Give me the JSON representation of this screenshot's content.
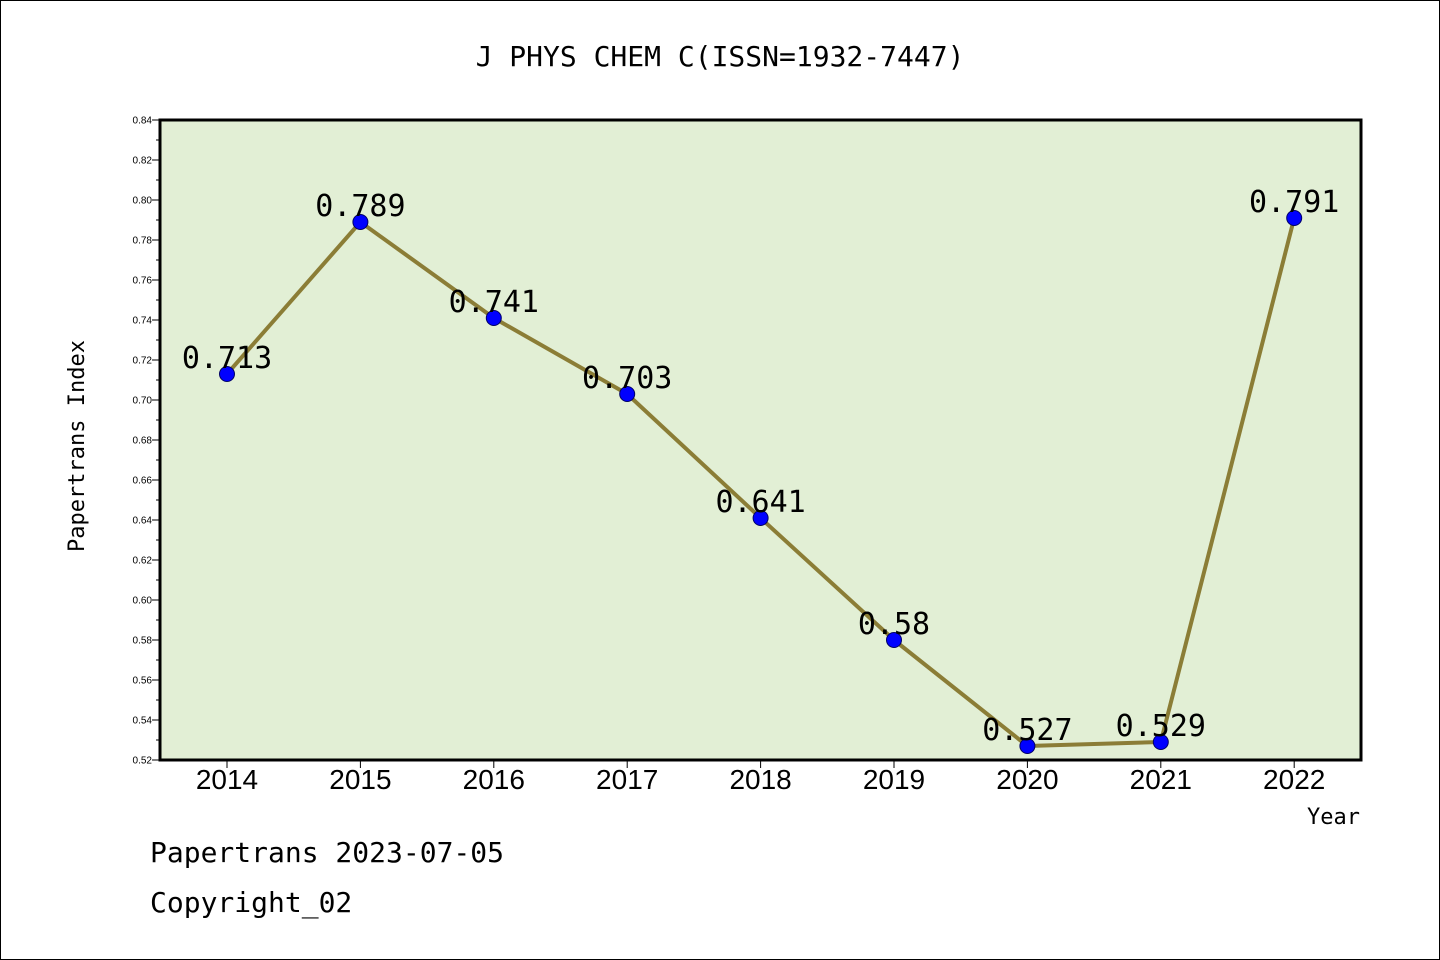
{
  "chart_data": {
    "type": "line",
    "title": "J PHYS CHEM C(ISSN=1932-7447)",
    "xlabel": "Year",
    "ylabel": "Papertrans Index",
    "categories": [
      "2014",
      "2015",
      "2016",
      "2017",
      "2018",
      "2019",
      "2020",
      "2021",
      "2022"
    ],
    "values": [
      0.713,
      0.789,
      0.741,
      0.703,
      0.641,
      0.58,
      0.527,
      0.529,
      0.791
    ],
    "data_labels": [
      "0.713",
      "0.789",
      "0.741",
      "0.703",
      "0.641",
      "0.58",
      "0.527",
      "0.529",
      "0.791"
    ],
    "ylim": [
      0.52,
      0.84
    ],
    "yticks": [
      "0.52",
      "0.54",
      "0.56",
      "0.58",
      "0.60",
      "0.62",
      "0.64",
      "0.66",
      "0.68",
      "0.70",
      "0.72",
      "0.74",
      "0.76",
      "0.78",
      "0.80",
      "0.82",
      "0.84"
    ],
    "grid": false,
    "colors": {
      "plot_background": "#e2efd5",
      "line": "#8b7d36",
      "marker": "#0000ff"
    }
  },
  "footer": {
    "line1": "Papertrans 2023-07-05",
    "line2": "Copyright_02"
  }
}
